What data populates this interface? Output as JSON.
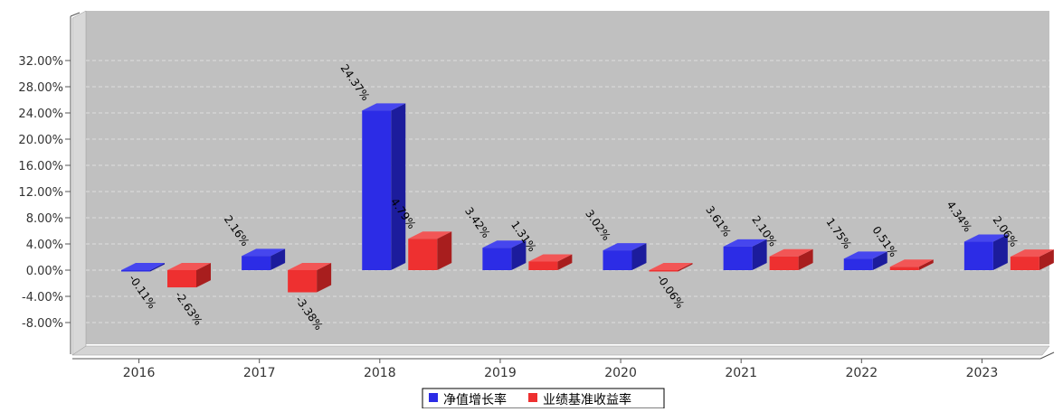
{
  "chart_data": {
    "type": "bar",
    "categories": [
      "2016",
      "2017",
      "2018",
      "2019",
      "2020",
      "2021",
      "2022",
      "2023"
    ],
    "series": [
      {
        "name": "净值增长率",
        "values": [
          -0.11,
          2.16,
          24.37,
          3.42,
          3.02,
          3.61,
          1.75,
          4.34
        ],
        "labels": [
          "-0.11%",
          "2.16%",
          "24.37%",
          "3.42%",
          "3.02%",
          "3.61%",
          "1.75%",
          "4.34%"
        ],
        "color": "#2c2ce6",
        "side_color": "#1c1c9c",
        "top_color": "#4646ee"
      },
      {
        "name": "业绩基准收益率",
        "values": [
          -2.63,
          -3.38,
          4.79,
          1.31,
          -0.06,
          2.1,
          0.51,
          2.06
        ],
        "labels": [
          "-2.63%",
          "-3.38%",
          "4.79%",
          "1.31%",
          "-0.06%",
          "2.10%",
          "0.51%",
          "2.06%"
        ],
        "color": "#ee3030",
        "side_color": "#a81e1e",
        "top_color": "#f25656"
      }
    ],
    "yticks": [
      "-8.00%",
      "-4.00%",
      "0.00%",
      "4.00%",
      "8.00%",
      "12.00%",
      "16.00%",
      "20.00%",
      "24.00%",
      "28.00%",
      "32.00%"
    ],
    "ylim": [
      -8,
      32
    ],
    "grid": true,
    "legend_position": "bottom-center",
    "plot_background": "#c0c0c0"
  }
}
